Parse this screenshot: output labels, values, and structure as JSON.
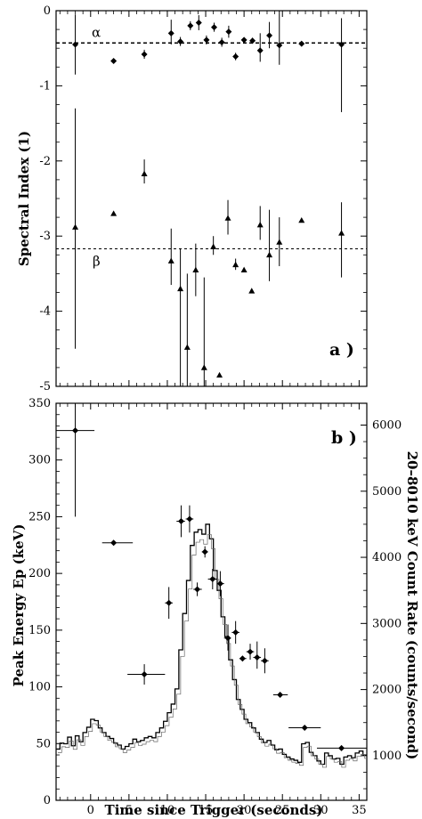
{
  "chart_data": [
    {
      "type": "scatter",
      "panel_label": "a )",
      "ylabel": "Spectral Index (1)",
      "ylim": [
        -5,
        0
      ],
      "xlim": [
        -4.5,
        36
      ],
      "y_ticks": [
        "0",
        "-1",
        "-2",
        "-3",
        "-4",
        "-5"
      ],
      "reference_lines": [
        {
          "label": "α",
          "y": -0.43,
          "style": "dashed"
        },
        {
          "label": "β",
          "y": -3.17,
          "style": "dashed"
        }
      ],
      "series": [
        {
          "name": "α",
          "marker": "diamond",
          "points": [
            {
              "x": -2.0,
              "y": -0.45,
              "ylo": -0.85,
              "yhi": -0.05
            },
            {
              "x": 3.0,
              "y": -0.67
            },
            {
              "x": 7.0,
              "y": -0.58,
              "ylo": -0.64,
              "yhi": -0.52
            },
            {
              "x": 10.5,
              "y": -0.3,
              "ylo": -0.45,
              "yhi": -0.12
            },
            {
              "x": 11.7,
              "y": -0.41,
              "ylo": -0.47,
              "yhi": -0.35
            },
            {
              "x": 13.0,
              "y": -0.2,
              "ylo": -0.26,
              "yhi": -0.14
            },
            {
              "x": 14.1,
              "y": -0.16,
              "ylo": -0.26,
              "yhi": -0.06
            },
            {
              "x": 15.1,
              "y": -0.39,
              "ylo": -0.45,
              "yhi": -0.33
            },
            {
              "x": 16.1,
              "y": -0.22,
              "ylo": -0.28,
              "yhi": -0.16
            },
            {
              "x": 17.1,
              "y": -0.42,
              "ylo": -0.48,
              "yhi": -0.36
            },
            {
              "x": 18.0,
              "y": -0.28,
              "ylo": -0.36,
              "yhi": -0.2
            },
            {
              "x": 18.9,
              "y": -0.61,
              "ylo": -0.66,
              "yhi": -0.56
            },
            {
              "x": 20.0,
              "y": -0.39
            },
            {
              "x": 21.1,
              "y": -0.4,
              "ylo": -0.44,
              "yhi": -0.36
            },
            {
              "x": 22.1,
              "y": -0.53,
              "ylo": -0.68,
              "yhi": -0.3
            },
            {
              "x": 23.3,
              "y": -0.33,
              "ylo": -0.5,
              "yhi": -0.15
            },
            {
              "x": 24.6,
              "y": -0.46,
              "ylo": -0.72,
              "yhi": 0.0
            },
            {
              "x": 27.5,
              "y": -0.44
            },
            {
              "x": 32.7,
              "y": -0.45,
              "ylo": -1.35,
              "yhi": -0.1
            }
          ]
        },
        {
          "name": "β",
          "marker": "triangle",
          "points": [
            {
              "x": -2.0,
              "y": -2.88,
              "ylo": -4.5,
              "yhi": -1.3
            },
            {
              "x": 3.0,
              "y": -2.7
            },
            {
              "x": 7.0,
              "y": -2.17,
              "ylo": -2.3,
              "yhi": -1.98
            },
            {
              "x": 10.5,
              "y": -3.33,
              "ylo": -3.65,
              "yhi": -2.9
            },
            {
              "x": 11.7,
              "y": -3.7,
              "ylo": -5.0,
              "yhi": -3.17
            },
            {
              "x": 12.6,
              "y": -4.48,
              "ylo": -5.0,
              "yhi": -3.5
            },
            {
              "x": 13.7,
              "y": -3.45,
              "ylo": -3.8,
              "yhi": -3.1
            },
            {
              "x": 14.8,
              "y": -4.75,
              "ylo": -5.0,
              "yhi": -3.55
            },
            {
              "x": 16.0,
              "y": -3.14,
              "ylo": -3.25,
              "yhi": -3.0
            },
            {
              "x": 16.8,
              "y": -4.85
            },
            {
              "x": 17.9,
              "y": -2.76,
              "ylo": -2.98,
              "yhi": -2.52
            },
            {
              "x": 18.9,
              "y": -3.38,
              "ylo": -3.45,
              "yhi": -3.3
            },
            {
              "x": 20.0,
              "y": -3.45
            },
            {
              "x": 21.0,
              "y": -3.73
            },
            {
              "x": 22.1,
              "y": -2.85,
              "ylo": -3.05,
              "yhi": -2.6
            },
            {
              "x": 23.3,
              "y": -3.25,
              "ylo": -3.6,
              "yhi": -2.65
            },
            {
              "x": 24.6,
              "y": -3.08,
              "ylo": -3.4,
              "yhi": -2.75
            },
            {
              "x": 27.5,
              "y": -2.79
            },
            {
              "x": 32.7,
              "y": -2.96,
              "ylo": -3.55,
              "yhi": -2.55
            }
          ]
        }
      ]
    },
    {
      "type": "line",
      "panel_label": "b )",
      "xlabel": "Time since Trigger (seconds)",
      "ylabel": "Peak Energy Ep (keV)",
      "ylabel_right": "20–8010 keV Count Rate (counts/second)",
      "xlim": [
        -4.5,
        36
      ],
      "ylim": [
        0,
        350
      ],
      "ylim_right": [
        325,
        6330
      ],
      "x_ticks": [
        "0",
        "5",
        "10",
        "15",
        "20",
        "25",
        "30",
        "35"
      ],
      "y_ticks": [
        "0",
        "50",
        "100",
        "150",
        "200",
        "250",
        "300",
        "350"
      ],
      "y_ticks_right": [
        "1000",
        "2000",
        "3000",
        "4000",
        "5000",
        "6000"
      ],
      "series": [
        {
          "name": "Peak Energy",
          "axis": "left",
          "marker": "diamond",
          "points": [
            {
              "x": -2.0,
              "y": 326,
              "xlo": -4.5,
              "xhi": 0.5,
              "ylo": 250,
              "yhi": 350
            },
            {
              "x": 3.0,
              "y": 227,
              "xlo": 1.5,
              "xhi": 5.5
            },
            {
              "x": 7.0,
              "y": 111,
              "xlo": 4.8,
              "xhi": 9.7,
              "ylo": 102,
              "yhi": 120
            },
            {
              "x": 10.2,
              "y": 174,
              "xlo": 9.7,
              "xhi": 10.7,
              "ylo": 160,
              "yhi": 188
            },
            {
              "x": 11.8,
              "y": 246,
              "xlo": 11.2,
              "xhi": 12.3,
              "ylo": 232,
              "yhi": 260
            },
            {
              "x": 12.9,
              "y": 248,
              "xlo": 12.4,
              "xhi": 13.4,
              "ylo": 236,
              "yhi": 260
            },
            {
              "x": 13.9,
              "y": 186,
              "xlo": 13.4,
              "xhi": 14.5,
              "ylo": 180,
              "yhi": 192
            },
            {
              "x": 14.9,
              "y": 219,
              "xlo": 14.5,
              "xhi": 15.3,
              "ylo": 214,
              "yhi": 224
            },
            {
              "x": 15.9,
              "y": 195,
              "xlo": 15.3,
              "xhi": 16.5,
              "ylo": 186,
              "yhi": 204
            },
            {
              "x": 16.9,
              "y": 191,
              "xlo": 16.5,
              "xhi": 17.4,
              "ylo": 180,
              "yhi": 202
            },
            {
              "x": 17.9,
              "y": 143,
              "xlo": 17.4,
              "xhi": 18.3,
              "ylo": 132,
              "yhi": 155
            },
            {
              "x": 18.9,
              "y": 148,
              "xlo": 18.4,
              "xhi": 19.4,
              "ylo": 138,
              "yhi": 158
            },
            {
              "x": 19.8,
              "y": 125,
              "xlo": 19.4,
              "xhi": 20.3
            },
            {
              "x": 20.8,
              "y": 131,
              "xlo": 20.3,
              "xhi": 21.3,
              "ylo": 124,
              "yhi": 138
            },
            {
              "x": 21.7,
              "y": 126,
              "xlo": 21.2,
              "xhi": 22.2,
              "ylo": 116,
              "yhi": 140
            },
            {
              "x": 22.7,
              "y": 123,
              "xlo": 22.2,
              "xhi": 23.2,
              "ylo": 112,
              "yhi": 134
            },
            {
              "x": 24.7,
              "y": 93,
              "xlo": 23.8,
              "xhi": 25.7
            },
            {
              "x": 27.9,
              "y": 64,
              "xlo": 25.8,
              "xhi": 30.0
            },
            {
              "x": 32.7,
              "y": 46,
              "xlo": 29.5,
              "xhi": 36.0
            }
          ]
        },
        {
          "name": "Count Rate",
          "axis": "right",
          "step": true,
          "x": [
            -4.5,
            -4.0,
            -3.5,
            -3.0,
            -2.5,
            -2.0,
            -1.5,
            -1.0,
            -0.5,
            0.0,
            0.5,
            1.0,
            1.5,
            2.0,
            2.5,
            3.0,
            3.5,
            4.0,
            4.5,
            5.0,
            5.5,
            6.0,
            6.5,
            7.0,
            7.5,
            8.0,
            8.5,
            9.0,
            9.5,
            10.0,
            10.5,
            11.0,
            11.5,
            12.0,
            12.5,
            13.0,
            13.5,
            14.0,
            14.5,
            15.0,
            15.5,
            16.0,
            16.5,
            17.0,
            17.5,
            18.0,
            18.5,
            19.0,
            19.5,
            20.0,
            20.5,
            21.0,
            21.5,
            22.0,
            22.5,
            23.0,
            23.5,
            24.0,
            24.5,
            25.0,
            25.5,
            26.0,
            26.5,
            27.0,
            27.5,
            28.0,
            28.5,
            29.0,
            29.5,
            30.0,
            30.5,
            31.0,
            31.5,
            32.0,
            32.5,
            33.0,
            33.5,
            34.0,
            34.5,
            35.0,
            35.5
          ],
          "values": [
            1100,
            1190,
            1180,
            1280,
            1150,
            1300,
            1210,
            1350,
            1430,
            1550,
            1530,
            1420,
            1350,
            1290,
            1260,
            1190,
            1160,
            1100,
            1140,
            1180,
            1250,
            1210,
            1230,
            1270,
            1290,
            1270,
            1350,
            1420,
            1520,
            1650,
            1780,
            2010,
            2600,
            3150,
            3650,
            4180,
            4380,
            4420,
            4350,
            4500,
            4280,
            3800,
            3500,
            3100,
            2800,
            2450,
            2150,
            1850,
            1700,
            1550,
            1500,
            1420,
            1350,
            1250,
            1200,
            1230,
            1160,
            1090,
            1100,
            1020,
            980,
            950,
            930,
            900,
            1180,
            1200,
            1050,
            1000,
            920,
            870,
            1040,
            1000,
            950,
            960,
            870,
            980,
            1000,
            970,
            1040,
            1070,
            1010
          ]
        }
      ]
    }
  ]
}
